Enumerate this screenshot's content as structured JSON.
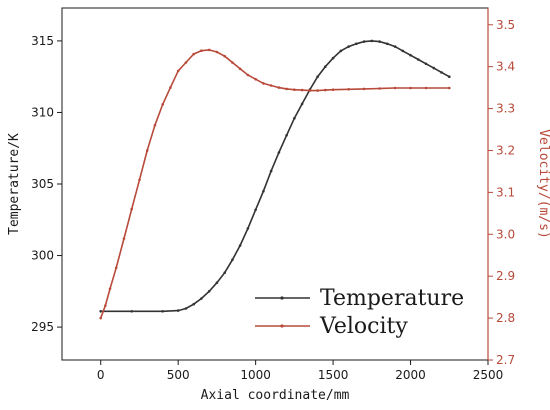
{
  "chart_data": {
    "type": "line",
    "title": "",
    "xlabel": "Axial coordinate/mm",
    "ylabel": "Temperature/K",
    "y2label": "Velocity/(m/s)",
    "xlim": [
      -250,
      2500
    ],
    "ylim": [
      292.7,
      317.3
    ],
    "y2lim": [
      2.7,
      3.54
    ],
    "xticks": [
      0,
      500,
      1000,
      1500,
      2000,
      2500
    ],
    "yticks": [
      295,
      300,
      305,
      310,
      315
    ],
    "y2ticks": [
      2.7,
      2.8,
      2.9,
      3.0,
      3.1,
      3.2,
      3.3,
      3.4,
      3.5
    ],
    "legend_position": "bottom-right",
    "grid": false,
    "series": [
      {
        "name": "Temperature",
        "axis": "left",
        "color": "#333333",
        "x": [
          0,
          200,
          400,
          500,
          550,
          600,
          650,
          700,
          750,
          800,
          850,
          900,
          950,
          1000,
          1050,
          1100,
          1150,
          1200,
          1250,
          1300,
          1350,
          1400,
          1450,
          1500,
          1550,
          1600,
          1650,
          1700,
          1750,
          1800,
          1850,
          1900,
          1950,
          2000,
          2050,
          2100,
          2150,
          2200,
          2250
        ],
        "values": [
          296.1,
          296.1,
          296.1,
          296.15,
          296.3,
          296.6,
          297.0,
          297.5,
          298.1,
          298.8,
          299.7,
          300.7,
          301.9,
          303.2,
          304.5,
          305.9,
          307.2,
          308.4,
          309.6,
          310.6,
          311.6,
          312.5,
          313.2,
          313.8,
          314.3,
          314.6,
          314.8,
          314.95,
          315.0,
          314.95,
          314.8,
          314.6,
          314.3,
          314.0,
          313.7,
          313.4,
          313.1,
          312.8,
          312.5
        ]
      },
      {
        "name": "Velocity",
        "axis": "right",
        "color": "#b84a3a",
        "x": [
          0,
          30,
          60,
          100,
          150,
          200,
          250,
          300,
          350,
          400,
          450,
          500,
          550,
          600,
          650,
          700,
          750,
          800,
          850,
          900,
          950,
          1000,
          1050,
          1100,
          1150,
          1200,
          1250,
          1300,
          1350,
          1400,
          1450,
          1500,
          1600,
          1700,
          1800,
          1900,
          2000,
          2100,
          2250
        ],
        "values": [
          2.8,
          2.83,
          2.87,
          2.92,
          2.99,
          3.06,
          3.13,
          3.2,
          3.26,
          3.31,
          3.35,
          3.39,
          3.41,
          3.43,
          3.438,
          3.44,
          3.435,
          3.425,
          3.41,
          3.395,
          3.38,
          3.37,
          3.36,
          3.355,
          3.35,
          3.347,
          3.345,
          3.344,
          3.343,
          3.343,
          3.344,
          3.345,
          3.346,
          3.347,
          3.348,
          3.349,
          3.349,
          3.349,
          3.349
        ]
      }
    ]
  }
}
